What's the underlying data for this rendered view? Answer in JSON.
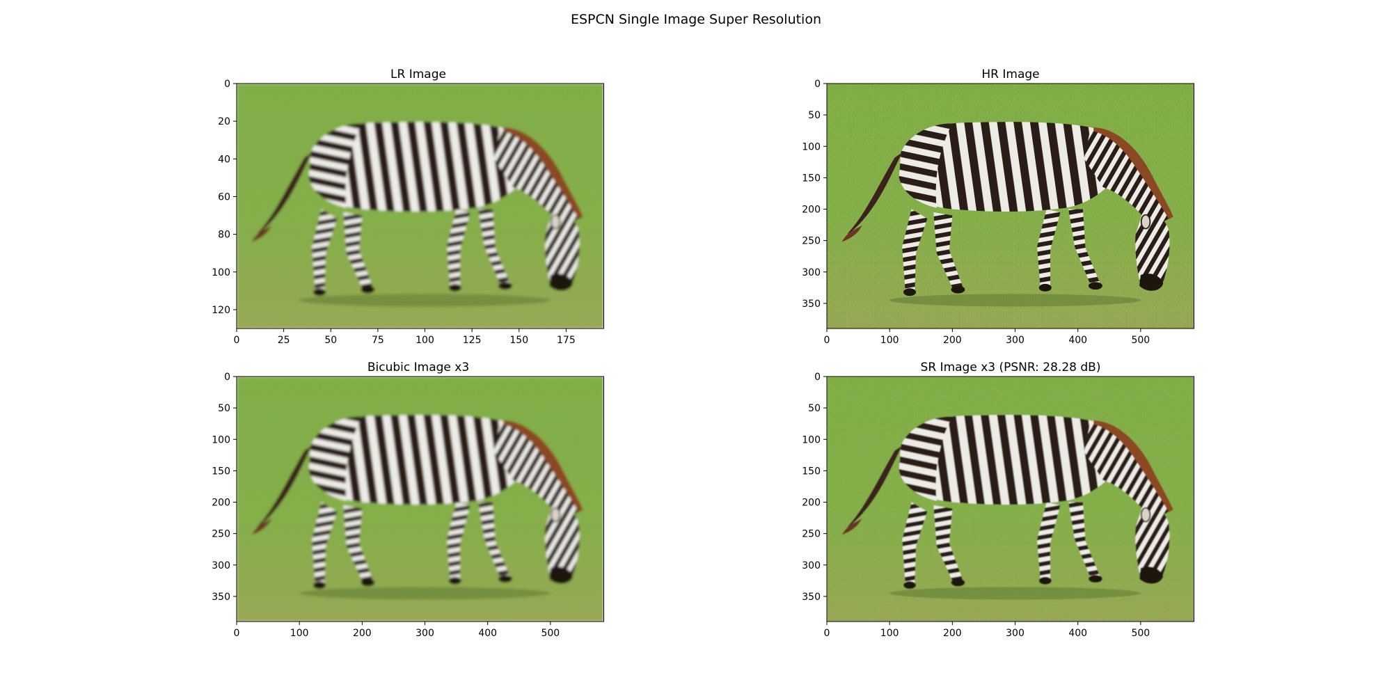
{
  "figure": {
    "suptitle": "ESPCN Single Image Super Resolution"
  },
  "colors": {
    "grass_light": "#86b04a",
    "grass_dark": "#6e9a3a",
    "zebra_dark": "#2a1a16",
    "zebra_light": "#ecebe6",
    "mane": "#8a4a22",
    "axis": "#000000"
  },
  "icons": [
    "zebra-photo"
  ],
  "chart_data": [
    {
      "type": "image",
      "id": "lr",
      "title": "LR Image",
      "xlim": [
        0,
        195
      ],
      "ylim": [
        130,
        0
      ],
      "xticks": [
        0,
        25,
        50,
        75,
        100,
        125,
        150,
        175
      ],
      "yticks": [
        0,
        20,
        40,
        60,
        80,
        100,
        120
      ],
      "sharpness": "low"
    },
    {
      "type": "image",
      "id": "hr",
      "title": "HR Image",
      "xlim": [
        0,
        585
      ],
      "ylim": [
        390,
        0
      ],
      "xticks": [
        0,
        100,
        200,
        300,
        400,
        500
      ],
      "yticks": [
        0,
        50,
        100,
        150,
        200,
        250,
        300,
        350
      ],
      "sharpness": "high"
    },
    {
      "type": "image",
      "id": "bicubic",
      "title": "Bicubic Image x3",
      "xlim": [
        0,
        585
      ],
      "ylim": [
        390,
        0
      ],
      "xticks": [
        0,
        100,
        200,
        300,
        400,
        500
      ],
      "yticks": [
        0,
        50,
        100,
        150,
        200,
        250,
        300,
        350
      ],
      "sharpness": "low"
    },
    {
      "type": "image",
      "id": "sr",
      "title": "SR Image x3 (PSNR: 28.28 dB)",
      "xlim": [
        0,
        585
      ],
      "ylim": [
        390,
        0
      ],
      "xticks": [
        0,
        100,
        200,
        300,
        400,
        500
      ],
      "yticks": [
        0,
        50,
        100,
        150,
        200,
        250,
        300,
        350
      ],
      "sharpness": "medium"
    }
  ]
}
